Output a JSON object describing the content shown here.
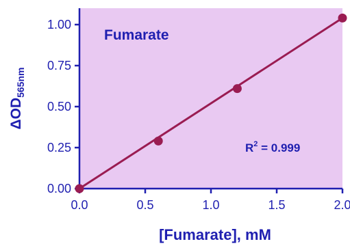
{
  "chart_data": {
    "type": "scatter",
    "title": "",
    "xlabel": "[Fumarate], mM",
    "ylabel": {
      "main": "ΔOD",
      "subscript": "565nm"
    },
    "xlim": [
      0,
      2.0
    ],
    "ylim": [
      0,
      1.1
    ],
    "x_ticks": [
      0.0,
      0.5,
      1.0,
      1.5,
      2.0
    ],
    "x_tick_labels": [
      "0.0",
      "0.5",
      "1.0",
      "1.5",
      "2.0"
    ],
    "y_ticks": [
      0.0,
      0.25,
      0.5,
      0.75,
      1.0
    ],
    "y_tick_labels": [
      "0.00",
      "0.25",
      "0.50",
      "0.75",
      "1.00"
    ],
    "grid": false,
    "series": [
      {
        "points": [
          {
            "x": 0.0,
            "y": 0.0
          },
          {
            "x": 0.6,
            "y": 0.29
          },
          {
            "x": 1.2,
            "y": 0.61
          },
          {
            "x": 2.0,
            "y": 1.04
          }
        ],
        "fit_line": {
          "x": [
            0.0,
            2.0
          ],
          "y": [
            0.0,
            1.04
          ]
        }
      }
    ],
    "annotations": {
      "inset_label": "Fumarate",
      "r_squared": {
        "prefix": "R",
        "superscript": "2",
        "suffix": " = 0.999"
      }
    },
    "colors": {
      "plot_background": "#e9c9f2",
      "axis": "#1f1fb0",
      "text": "#1f1fb0",
      "series": "#9a1c52"
    }
  }
}
